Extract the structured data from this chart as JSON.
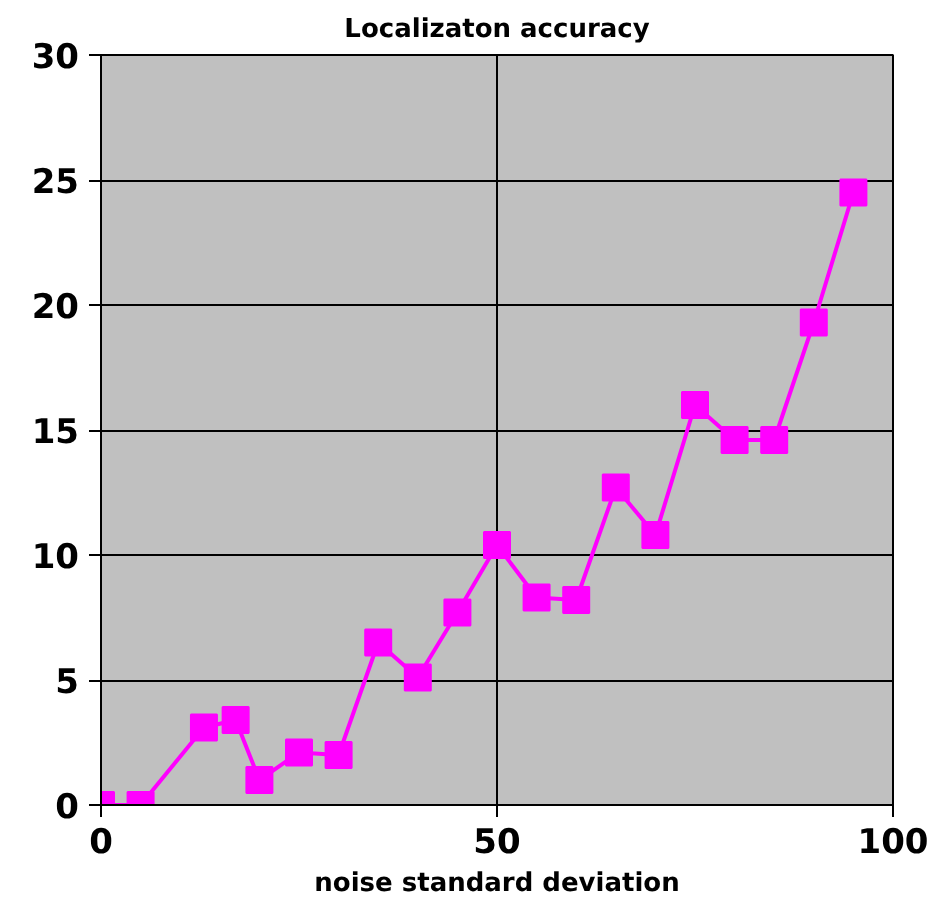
{
  "chart_data": {
    "type": "line",
    "title": "Localizaton accuracy",
    "xlabel": "noise standard deviation",
    "x": [
      0,
      5,
      13,
      17,
      20,
      25,
      30,
      35,
      40,
      45,
      50,
      55,
      60,
      65,
      70,
      75,
      80,
      85,
      90,
      95
    ],
    "series": [
      {
        "color": "#ff00ff",
        "values": [
          0,
          0,
          3.1,
          3.4,
          1.0,
          2.1,
          2.0,
          6.5,
          5.1,
          7.7,
          10.4,
          8.3,
          8.2,
          12.7,
          10.8,
          16.0,
          14.6,
          14.6,
          19.3,
          24.5
        ]
      }
    ],
    "xlim": [
      0,
      100
    ],
    "xticks": [
      0,
      50,
      100
    ],
    "ylim": [
      0,
      30
    ],
    "yticks": [
      0,
      5,
      10,
      15,
      20,
      25,
      30
    ],
    "grid": true,
    "marker": "square",
    "line_style": "solid"
  }
}
